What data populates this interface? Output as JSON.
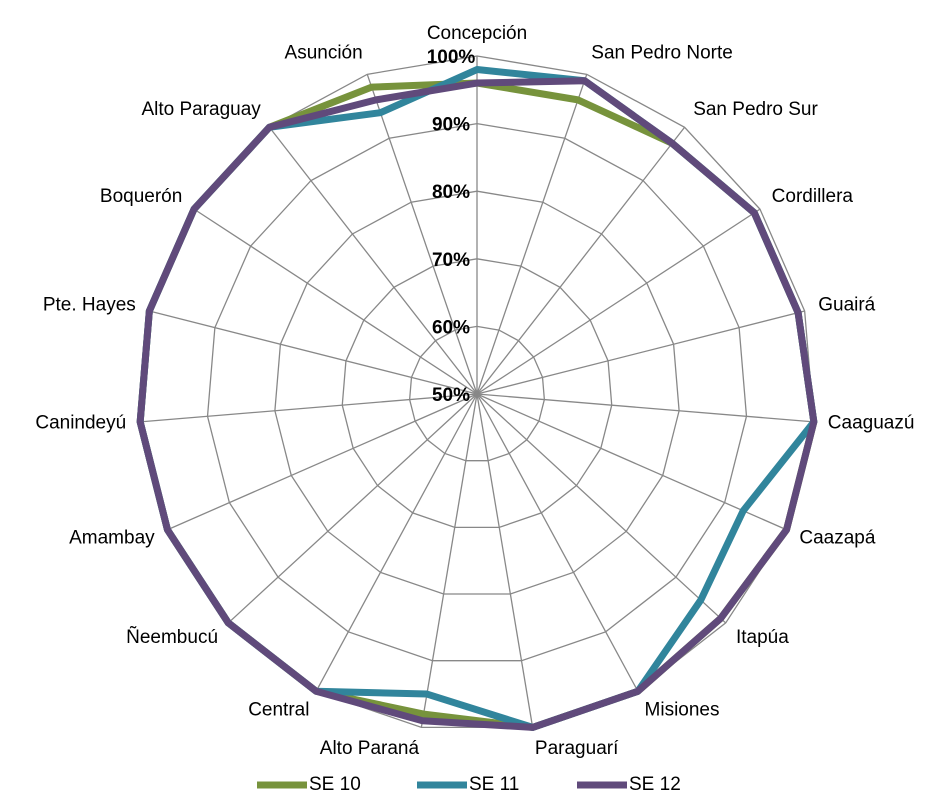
{
  "chart_data": {
    "type": "radar",
    "categories": [
      "Concepción",
      "San Pedro Norte",
      "San Pedro Sur",
      "Cordillera",
      "Guairá",
      "Caaguazú",
      "Caazapá",
      "Itapúa",
      "Misiones",
      "Paraguarí",
      "Alto Paraná",
      "Central",
      "Ñeembucú",
      "Amambay",
      "Canindeyú",
      "Pte. Hayes",
      "Boquerón",
      "Alto Paraguay",
      "Asunción"
    ],
    "series": [
      {
        "name": "SE 10",
        "color": "#77933c",
        "values": [
          96,
          96,
          97,
          99,
          99,
          100,
          100,
          99,
          100,
          100,
          98,
          100,
          100,
          100,
          100,
          100,
          100,
          100,
          98
        ]
      },
      {
        "name": "SE 11",
        "color": "#31859c",
        "values": [
          98,
          99,
          97,
          99,
          99,
          100,
          93,
          95,
          100,
          100,
          95,
          100,
          100,
          100,
          100,
          100,
          100,
          100,
          94
        ]
      },
      {
        "name": "SE 12",
        "color": "#604a7b",
        "values": [
          96,
          99,
          97,
          99,
          99,
          100,
          100,
          99,
          100,
          100,
          99,
          100,
          100,
          100,
          100,
          100,
          100,
          100,
          96
        ]
      }
    ],
    "ylim": [
      50,
      100
    ],
    "yticks": [
      {
        "value": 50,
        "label": "50%"
      },
      {
        "value": 60,
        "label": "60%"
      },
      {
        "value": 70,
        "label": "70%"
      },
      {
        "value": 80,
        "label": "80%"
      },
      {
        "value": 90,
        "label": "90%"
      },
      {
        "value": 100,
        "label": "100%"
      }
    ],
    "grid": true,
    "legend": "bottom"
  }
}
